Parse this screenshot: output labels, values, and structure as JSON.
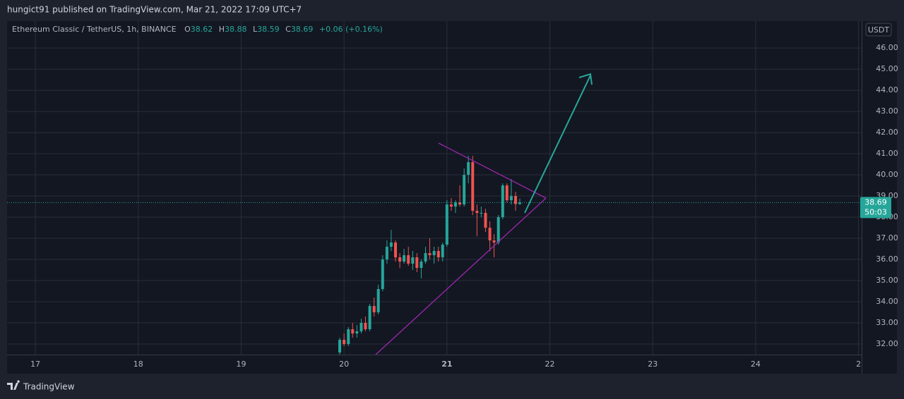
{
  "header": {
    "published": "hungict91 published on TradingView.com, Mar 21, 2022 17:09 UTC+7"
  },
  "footer": {
    "brand": "TradingView"
  },
  "chart_data": {
    "type": "candlestick",
    "symbol": "Ethereum Classic / TetherUS, 1h, BINANCE",
    "ohlc_keys": [
      "O",
      "H",
      "L",
      "C"
    ],
    "ohlc_values": [
      38.62,
      38.88,
      38.59,
      38.69
    ],
    "change": "+0.06 (+0.16%)",
    "currency": "USDT",
    "last_price": 38.69,
    "countdown": "50:03",
    "up_color": "#26a69a",
    "down_color": "#ef5350",
    "grid": true,
    "xlim": [
      16.725,
      25.03
    ],
    "xticks": [
      17,
      18,
      19,
      20,
      21,
      22,
      23,
      24,
      {
        "value": 25,
        "label": "2"
      }
    ],
    "ylim": [
      31.5,
      47.27
    ],
    "yticks": [
      {
        "value": 32,
        "label": "32.00"
      },
      {
        "value": 33,
        "label": "33.00"
      },
      {
        "value": 34,
        "label": "34.00"
      },
      {
        "value": 35,
        "label": "35.00"
      },
      {
        "value": 36,
        "label": "36.00"
      },
      {
        "value": 37,
        "label": "37.00"
      },
      {
        "value": 38,
        "label": "38.00"
      },
      {
        "value": 39,
        "label": "39.00"
      },
      {
        "value": 40,
        "label": "40.00"
      },
      {
        "value": 41,
        "label": "41.00"
      },
      {
        "value": 42,
        "label": "42.00"
      },
      {
        "value": 43,
        "label": "43.00"
      },
      {
        "value": 44,
        "label": "44.00"
      },
      {
        "value": 45,
        "label": "45.00"
      },
      {
        "value": 46,
        "label": "46.00"
      }
    ],
    "x": [
      19.958,
      20.0,
      20.042,
      20.083,
      20.125,
      20.167,
      20.208,
      20.25,
      20.292,
      20.333,
      20.375,
      20.417,
      20.458,
      20.5,
      20.542,
      20.583,
      20.625,
      20.667,
      20.708,
      20.75,
      20.792,
      20.833,
      20.875,
      20.917,
      20.958,
      21.0,
      21.042,
      21.083,
      21.125,
      21.167,
      21.208,
      21.25,
      21.292,
      21.333,
      21.375,
      21.417,
      21.458,
      21.5,
      21.542,
      21.583,
      21.625,
      21.667,
      21.708
    ],
    "open": [
      31.6,
      32.2,
      32.0,
      32.7,
      32.5,
      32.6,
      33.0,
      32.7,
      33.8,
      33.5,
      34.6,
      36.0,
      36.6,
      36.8,
      36.1,
      35.9,
      36.2,
      35.8,
      36.1,
      35.6,
      35.9,
      36.3,
      36.2,
      36.4,
      36.1,
      36.7,
      38.6,
      38.5,
      38.7,
      38.6,
      40.0,
      40.6,
      38.3,
      38.2,
      38.2,
      37.5,
      36.9,
      36.8,
      38.0,
      39.5,
      38.8,
      39.0,
      38.62
    ],
    "high": [
      32.3,
      32.5,
      32.8,
      33.0,
      32.9,
      33.2,
      33.3,
      33.9,
      34.2,
      34.8,
      36.2,
      36.9,
      37.4,
      36.9,
      36.3,
      36.5,
      36.6,
      36.4,
      36.3,
      36.0,
      36.6,
      37.0,
      36.6,
      36.6,
      36.8,
      38.8,
      38.9,
      38.8,
      39.5,
      40.3,
      40.9,
      40.9,
      38.6,
      38.5,
      38.4,
      37.8,
      37.2,
      38.1,
      39.6,
      39.6,
      39.8,
      39.2,
      38.88
    ],
    "low": [
      31.5,
      31.9,
      31.9,
      32.3,
      32.3,
      32.5,
      32.6,
      32.6,
      33.3,
      33.4,
      34.5,
      35.8,
      36.4,
      35.9,
      35.6,
      35.8,
      35.7,
      35.5,
      35.4,
      35.1,
      35.8,
      36.0,
      35.8,
      35.9,
      35.9,
      36.6,
      38.3,
      38.2,
      38.5,
      38.5,
      39.6,
      38.1,
      37.1,
      38.0,
      37.3,
      36.4,
      36.1,
      36.7,
      37.9,
      38.7,
      38.6,
      38.3,
      38.59
    ],
    "close": [
      32.2,
      32.0,
      32.7,
      32.5,
      32.6,
      33.0,
      32.7,
      33.8,
      33.5,
      34.6,
      36.0,
      36.6,
      36.8,
      36.1,
      35.9,
      36.2,
      35.8,
      36.1,
      35.6,
      35.9,
      36.3,
      36.2,
      36.4,
      36.1,
      36.7,
      38.6,
      38.5,
      38.7,
      38.6,
      40.0,
      40.6,
      38.3,
      38.2,
      38.2,
      37.5,
      36.9,
      36.8,
      38.0,
      39.5,
      38.8,
      39.0,
      38.62,
      38.69
    ]
  }
}
